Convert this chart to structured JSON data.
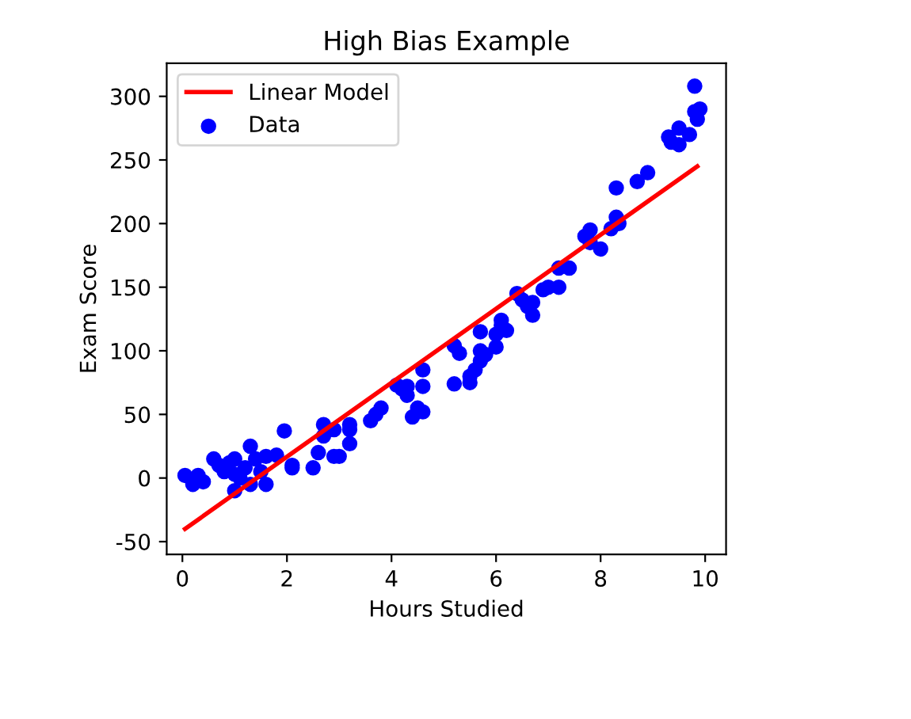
{
  "chart_data": {
    "type": "scatter",
    "title": "High Bias Example",
    "xlabel": "Hours Studied",
    "ylabel": "Exam Score",
    "xlim": [
      -0.3,
      10.4
    ],
    "ylim": [
      -60,
      326
    ],
    "xticks": [
      0,
      2,
      4,
      6,
      8,
      10
    ],
    "yticks": [
      -50,
      0,
      50,
      100,
      150,
      200,
      250,
      300
    ],
    "legend": "top left",
    "grid": false,
    "series": [
      {
        "name": "Linear Model",
        "type": "line",
        "color": "#ff0000",
        "x": [
          0.05,
          9.85
        ],
        "values": [
          -40,
          245
        ]
      },
      {
        "name": "Data",
        "color": "#0000ff",
        "marker": "circle",
        "x": [
          0.05,
          0.2,
          0.3,
          0.4,
          0.6,
          0.7,
          0.8,
          0.9,
          1.0,
          1.0,
          1.0,
          1.1,
          1.2,
          1.3,
          1.3,
          1.4,
          1.5,
          1.6,
          1.6,
          1.8,
          1.95,
          2.1,
          2.1,
          2.5,
          2.6,
          2.7,
          2.7,
          2.9,
          3.0,
          2.9,
          3.2,
          3.2,
          3.2,
          3.6,
          3.7,
          3.8,
          4.1,
          4.2,
          4.3,
          4.3,
          4.4,
          4.5,
          4.6,
          4.6,
          4.6,
          5.2,
          5.2,
          5.3,
          5.5,
          5.5,
          5.6,
          5.7,
          5.7,
          5.7,
          5.8,
          6.0,
          6.0,
          6.1,
          6.1,
          6.2,
          6.4,
          6.5,
          6.6,
          6.7,
          6.7,
          6.9,
          7.0,
          7.2,
          7.2,
          7.4,
          7.7,
          7.8,
          7.8,
          8.0,
          8.2,
          8.3,
          8.35,
          8.3,
          8.7,
          8.9,
          9.3,
          9.35,
          9.5,
          9.5,
          9.7,
          9.8,
          9.9,
          9.85,
          9.8
        ],
        "values": [
          2,
          -5,
          2,
          -3,
          15,
          10,
          5,
          12,
          -10,
          3,
          15,
          0,
          8,
          -5,
          25,
          15,
          5,
          -5,
          17,
          18,
          37,
          10,
          8,
          8,
          20,
          42,
          33,
          17,
          17,
          38,
          27,
          38,
          42,
          45,
          50,
          55,
          73,
          70,
          65,
          72,
          48,
          55,
          52,
          72,
          85,
          74,
          104,
          98,
          75,
          80,
          85,
          92,
          100,
          115,
          97,
          113,
          103,
          120,
          124,
          116,
          145,
          140,
          135,
          128,
          138,
          148,
          150,
          165,
          150,
          165,
          190,
          195,
          185,
          180,
          196,
          205,
          200,
          228,
          233,
          240,
          268,
          264,
          275,
          262,
          270,
          288,
          290,
          282,
          308
        ]
      }
    ]
  }
}
